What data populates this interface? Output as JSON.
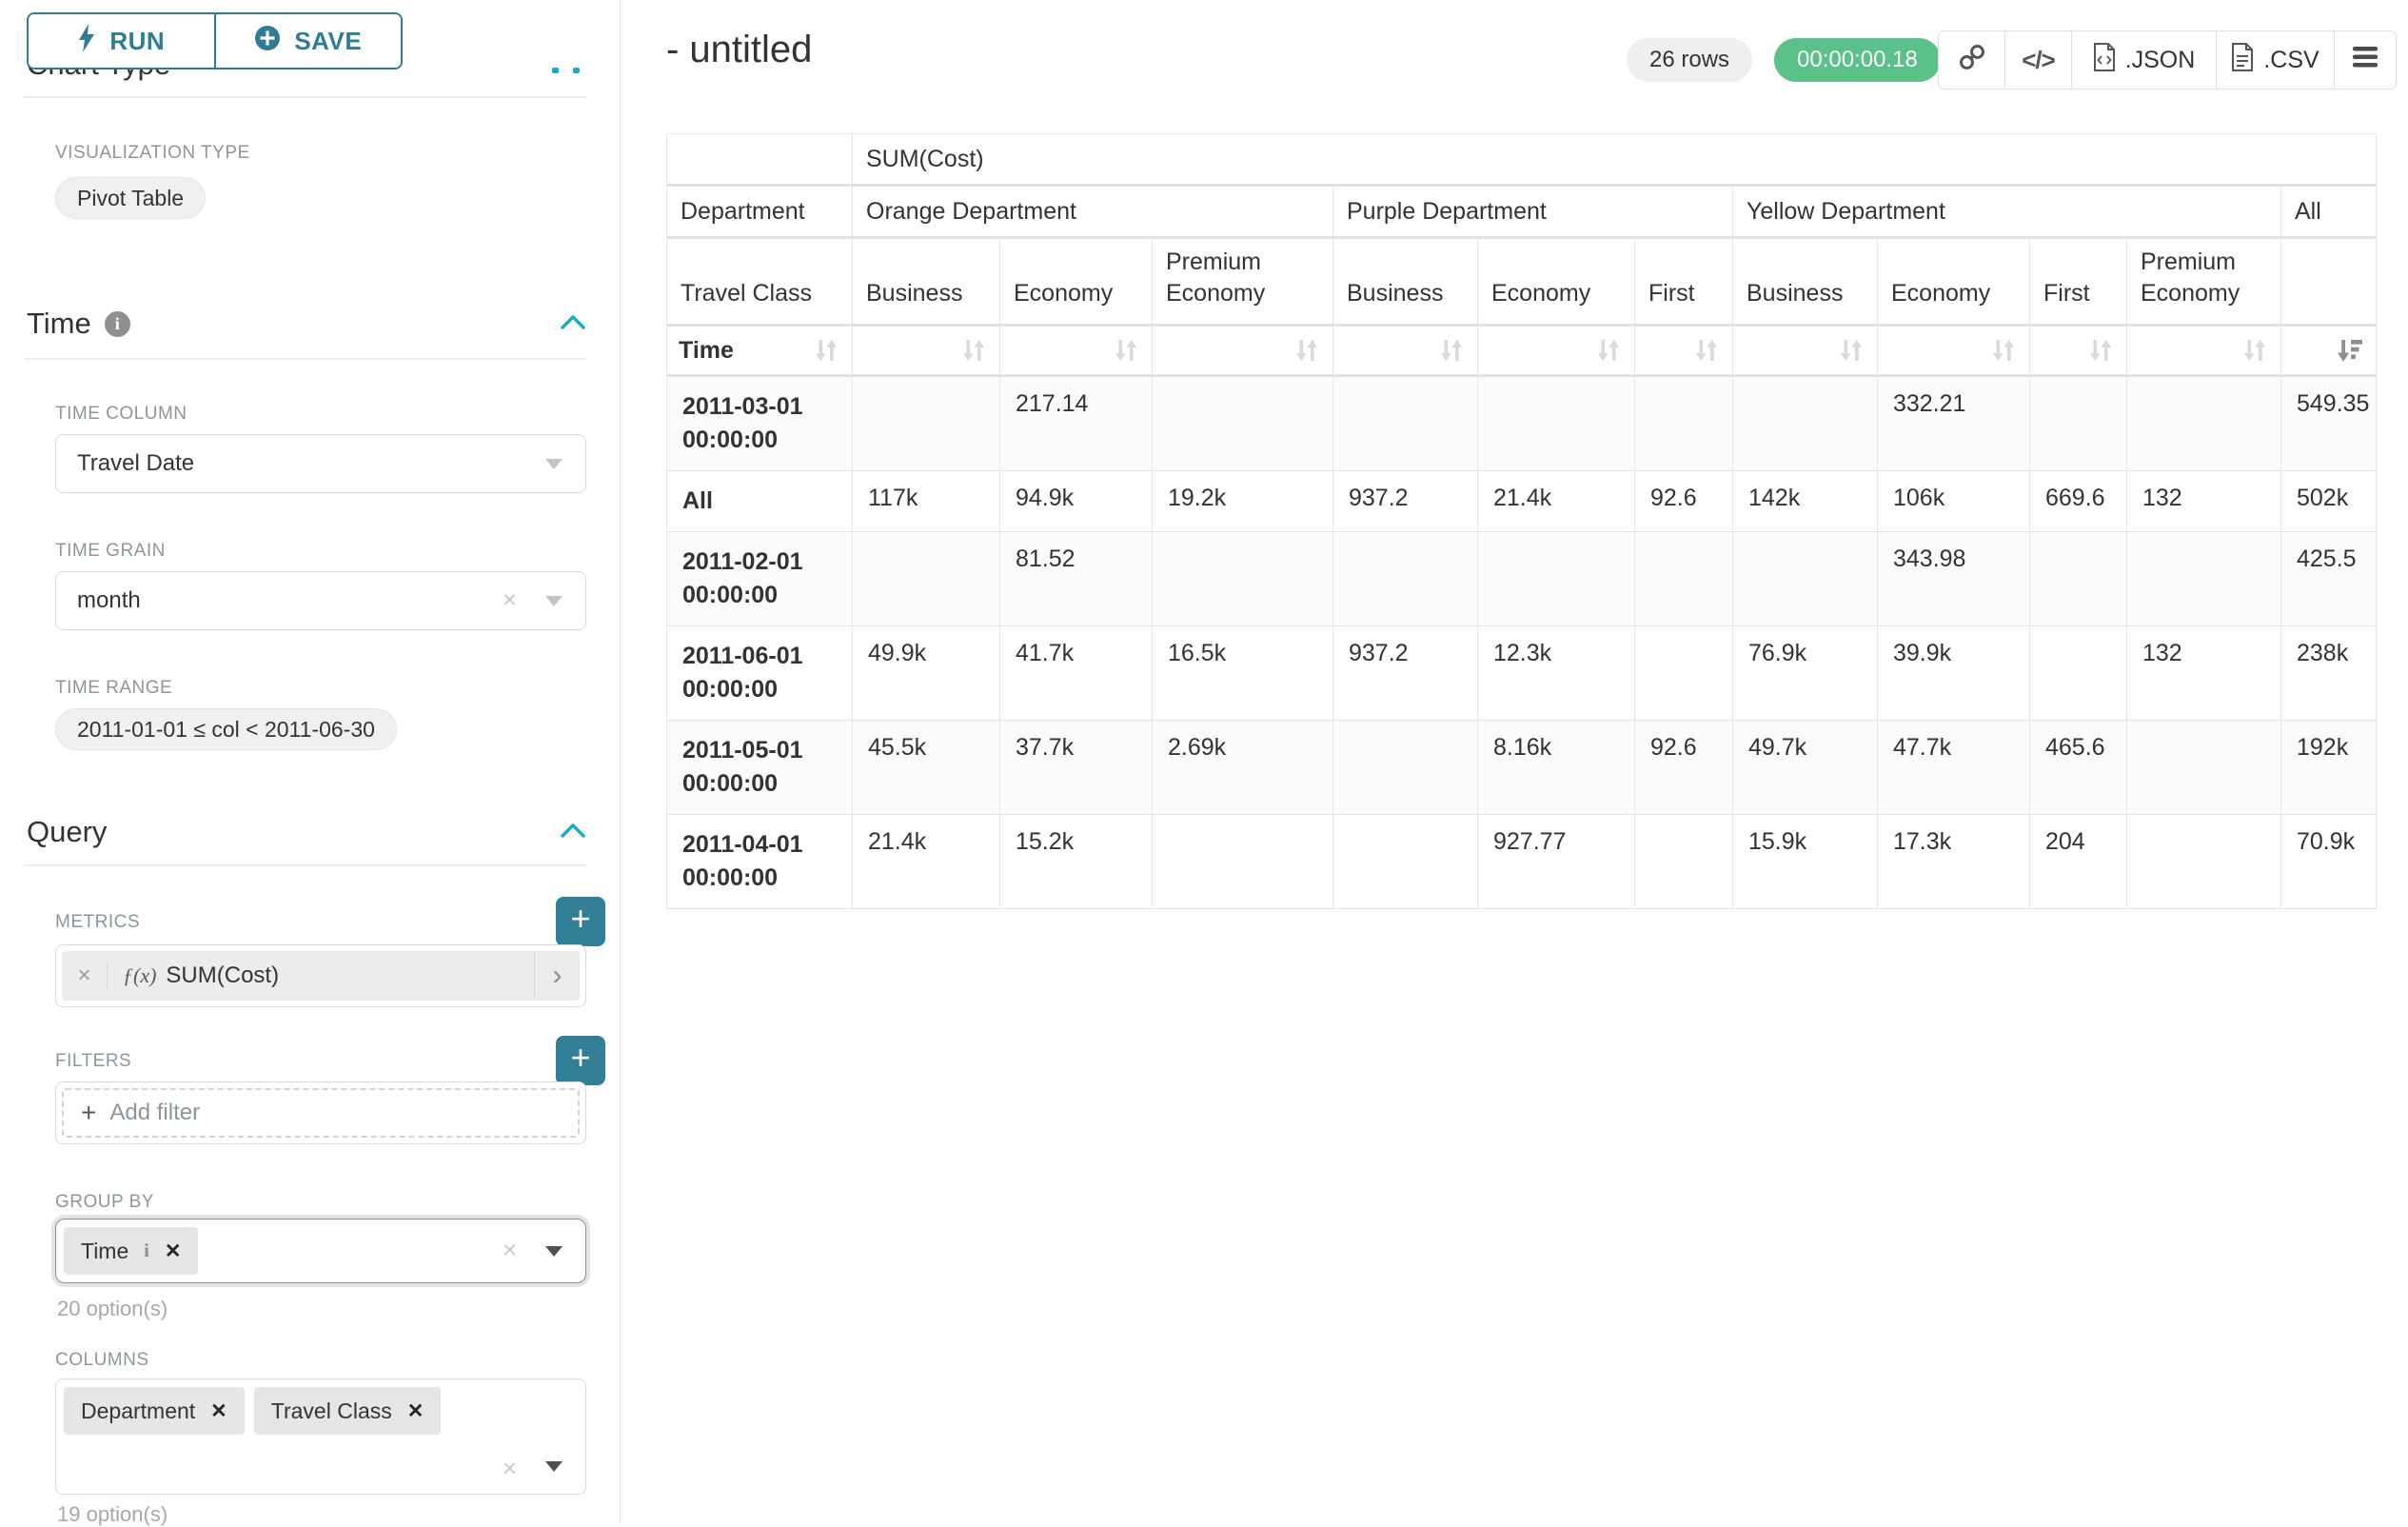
{
  "accent_color": "#1fa8c9",
  "button_teal": "#2e7d95",
  "plus_button_color": "#327e97",
  "success_color": "#5ac189",
  "toolbar": {
    "run_label": "RUN",
    "save_label": "SAVE"
  },
  "panel": {
    "chart_type_heading": "Chart Type",
    "visualization": {
      "label": "VISUALIZATION TYPE",
      "value": "Pivot Table"
    },
    "time": {
      "heading": "Time",
      "column_label": "TIME COLUMN",
      "column_value": "Travel Date",
      "grain_label": "TIME GRAIN",
      "grain_value": "month",
      "range_label": "TIME RANGE",
      "range_value": "2011-01-01 ≤ col < 2011-06-30"
    },
    "query": {
      "heading": "Query",
      "metrics_label": "METRICS",
      "metric": {
        "prefix": "ƒ(x)",
        "name": "SUM(Cost)",
        "remove_glyph": "×",
        "open_glyph": "›"
      },
      "filters_label": "FILTERS",
      "add_filter_plus": "+",
      "add_filter_label": "Add filter",
      "group_by": {
        "label": "GROUP BY",
        "values": [
          "Time"
        ],
        "hint": "20 option(s)",
        "remove_glyph": "✕",
        "info_glyph": "i"
      },
      "columns": {
        "label": "COLUMNS",
        "values": [
          "Department",
          "Travel Class"
        ],
        "hint": "19 option(s)",
        "remove_glyph": "✕"
      },
      "plus_glyph": "+"
    },
    "clear_glyph": "×"
  },
  "header": {
    "title": "- untitled",
    "row_count": "26 rows",
    "timer": "00:00:00.18",
    "code_glyph": "</>",
    "export_json": ".JSON",
    "export_csv": ".CSV"
  },
  "pivot_table": {
    "metric_header": "SUM(Cost)",
    "department_label": "Department",
    "travel_class_label": "Travel Class",
    "time_label": "Time",
    "all_label": "All",
    "groups": [
      {
        "label": "Orange Department",
        "classes": [
          "Business",
          "Economy",
          "Premium Economy"
        ]
      },
      {
        "label": "Purple Department",
        "classes": [
          "Business",
          "Economy",
          "First"
        ]
      },
      {
        "label": "Yellow Department",
        "classes": [
          "Business",
          "Economy",
          "First",
          "Premium Economy"
        ]
      }
    ],
    "rows": [
      {
        "key": "2011-03-01 00:00:00",
        "cells": [
          "",
          "217.14",
          "",
          "",
          "",
          "",
          "",
          "332.21",
          "",
          "",
          "549.35"
        ]
      },
      {
        "key": "All",
        "cells": [
          "117k",
          "94.9k",
          "19.2k",
          "937.2",
          "21.4k",
          "92.6",
          "142k",
          "106k",
          "669.6",
          "132",
          "502k"
        ]
      },
      {
        "key": "2011-02-01 00:00:00",
        "cells": [
          "",
          "81.52",
          "",
          "",
          "",
          "",
          "",
          "343.98",
          "",
          "",
          "425.5"
        ]
      },
      {
        "key": "2011-06-01 00:00:00",
        "cells": [
          "49.9k",
          "41.7k",
          "16.5k",
          "937.2",
          "12.3k",
          "",
          "76.9k",
          "39.9k",
          "",
          "132",
          "238k"
        ]
      },
      {
        "key": "2011-05-01 00:00:00",
        "cells": [
          "45.5k",
          "37.7k",
          "2.69k",
          "",
          "8.16k",
          "92.6",
          "49.7k",
          "47.7k",
          "465.6",
          "",
          "192k"
        ]
      },
      {
        "key": "2011-04-01 00:00:00",
        "cells": [
          "21.4k",
          "15.2k",
          "",
          "",
          "927.77",
          "",
          "15.9k",
          "17.3k",
          "204",
          "",
          "70.9k"
        ]
      }
    ]
  }
}
